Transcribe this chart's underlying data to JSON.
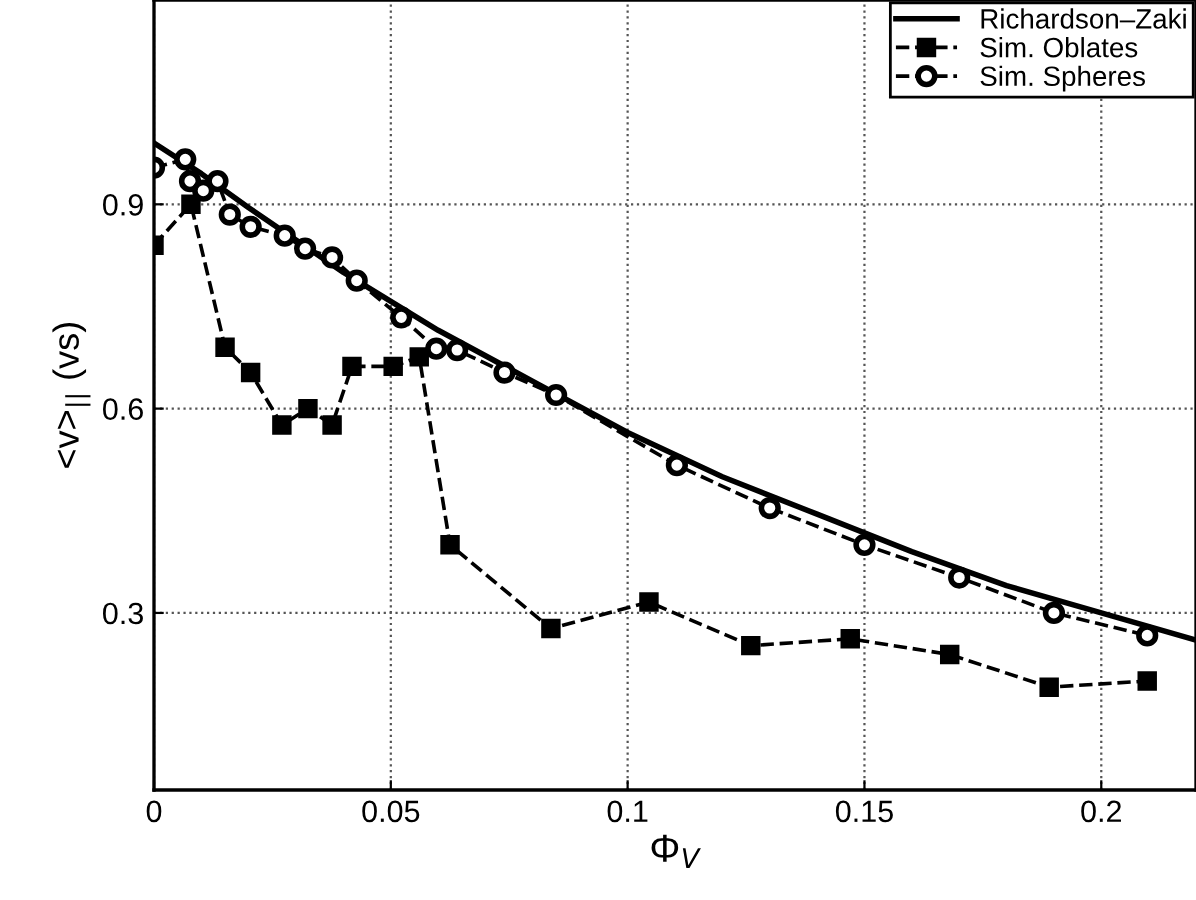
{
  "chart_data": {
    "type": "line",
    "xlabel": "Φ$_{V}$",
    "ylabel": "<v>$_{||}$ (vs)",
    "xlim": [
      0,
      0.22
    ],
    "ylim": [
      0.04,
      1.2
    ],
    "xticks": [
      0,
      0.05,
      0.1,
      0.15,
      0.2
    ],
    "yticks": [
      0.3,
      0.6,
      0.9
    ],
    "grid": true,
    "legend": "top right",
    "series": [
      {
        "name": "Richardson–Zaki",
        "color": "#000000",
        "marker": "none",
        "line_style": "solid",
        "x": [
          0,
          0.01,
          0.02,
          0.04,
          0.06,
          0.08,
          0.1,
          0.12,
          0.14,
          0.16,
          0.18,
          0.2,
          0.22
        ],
        "values": [
          0.99,
          0.945,
          0.895,
          0.8,
          0.715,
          0.64,
          0.565,
          0.5,
          0.445,
          0.39,
          0.34,
          0.3,
          0.26
        ]
      },
      {
        "name": "Sim. Oblates",
        "color": "#000000",
        "marker": "square",
        "line_style": "dashed",
        "x": [
          0,
          0.0078,
          0.015,
          0.0204,
          0.027,
          0.0325,
          0.0376,
          0.0418,
          0.0505,
          0.056,
          0.0625,
          0.0838,
          0.1045,
          0.126,
          0.147,
          0.168,
          0.189,
          0.2097
        ],
        "values": [
          0.84,
          0.9,
          0.69,
          0.653,
          0.576,
          0.6,
          0.576,
          0.662,
          0.662,
          0.676,
          0.4,
          0.277,
          0.316,
          0.252,
          0.262,
          0.239,
          0.191,
          0.2
        ]
      },
      {
        "name": "Sim. Spheres",
        "color": "#000000",
        "marker": "circle",
        "line_style": "dashed",
        "x": [
          0,
          0.0066,
          0.0076,
          0.0104,
          0.0134,
          0.016,
          0.0204,
          0.0276,
          0.0319,
          0.0376,
          0.0428,
          0.0522,
          0.0596,
          0.064,
          0.074,
          0.0849,
          0.1104,
          0.13,
          0.15,
          0.17,
          0.19,
          0.2097
        ],
        "values": [
          0.954,
          0.966,
          0.934,
          0.92,
          0.934,
          0.885,
          0.867,
          0.854,
          0.835,
          0.822,
          0.788,
          0.734,
          0.688,
          0.686,
          0.653,
          0.62,
          0.517,
          0.454,
          0.4,
          0.352,
          0.3,
          0.267
        ]
      }
    ]
  }
}
